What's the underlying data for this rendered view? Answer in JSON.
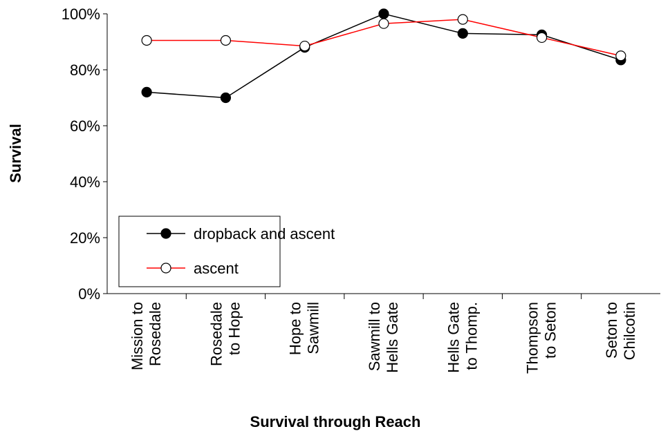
{
  "chart_data": {
    "type": "line",
    "x_label": "Survival through Reach",
    "y_label": "Survival",
    "categories": [
      [
        "Mission to",
        "Rosedale"
      ],
      [
        "Rosedale",
        "to Hope"
      ],
      [
        "Hope to",
        "Sawmill"
      ],
      [
        "Sawmill to",
        "Hells Gate"
      ],
      [
        "Hells Gate",
        "to Thomp."
      ],
      [
        "Thompson",
        "to Seton"
      ],
      [
        "Seton to",
        "Chilcotin"
      ]
    ],
    "series": [
      {
        "name": "dropback and ascent",
        "color": "#000000",
        "marker_fill": "#000000",
        "values": [
          72,
          70,
          88,
          100,
          93,
          92.5,
          83.5
        ]
      },
      {
        "name": "ascent",
        "color": "#ff0000",
        "marker_fill": "#ffffff",
        "values": [
          90.5,
          90.5,
          88.5,
          96.5,
          98,
          91.5,
          85
        ]
      }
    ],
    "ylim": [
      0,
      100
    ],
    "yticks": [
      {
        "value": 0,
        "label": "0%"
      },
      {
        "value": 20,
        "label": "20%"
      },
      {
        "value": 40,
        "label": "40%"
      },
      {
        "value": 60,
        "label": "60%"
      },
      {
        "value": 80,
        "label": "80%"
      },
      {
        "value": 100,
        "label": "100%"
      }
    ],
    "grid": false
  }
}
